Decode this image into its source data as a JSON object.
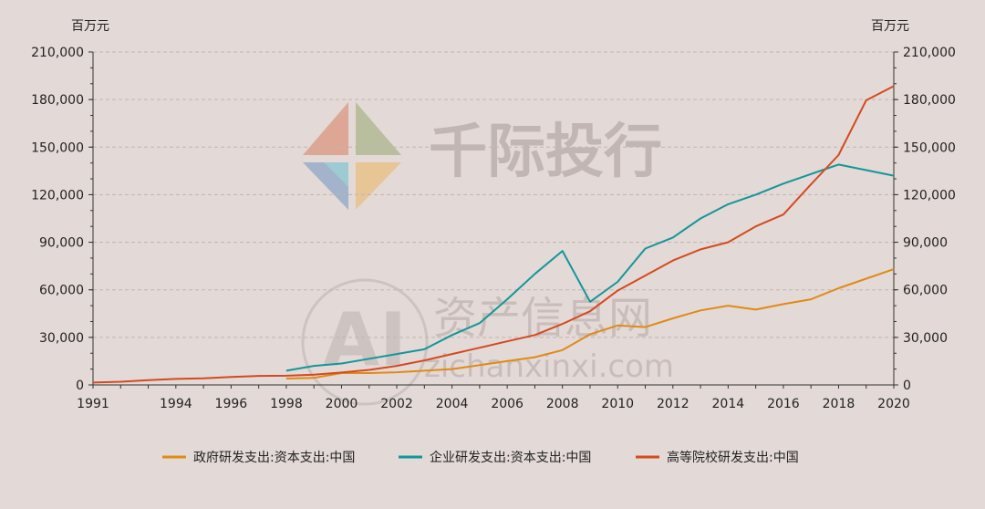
{
  "watermark": {
    "brand": "千际投行",
    "site_cn": "资产信息网",
    "site_url": "zichanxinxi.com",
    "badge": "AI"
  },
  "colors": {
    "gov": "#e08a16",
    "enterprise": "#13969a",
    "university": "#d44a1f",
    "grid": "#bfb5b3",
    "axis": "#333333"
  },
  "chart_data": {
    "type": "line",
    "title": "",
    "y_unit_left": "百万元",
    "y_unit_right": "百万元",
    "ylim": [
      0,
      210000
    ],
    "yticks": [
      0,
      30000,
      60000,
      90000,
      120000,
      150000,
      180000,
      210000
    ],
    "ytick_labels": [
      "0",
      "30,000",
      "60,000",
      "90,000",
      "120,000",
      "150,000",
      "180,000",
      "210,000"
    ],
    "xlim": [
      1991,
      2020
    ],
    "xticks": [
      1991,
      1994,
      1996,
      1998,
      2000,
      2002,
      2004,
      2006,
      2008,
      2010,
      2012,
      2014,
      2016,
      2018,
      2020
    ],
    "grid": true,
    "legend_position": "bottom",
    "series": [
      {
        "name": "政府研发支出:资本支出:中国",
        "color_key": "gov",
        "x": [
          1998,
          1999,
          2000,
          2001,
          2002,
          2003,
          2004,
          2005,
          2006,
          2007,
          2008,
          2009,
          2010,
          2011,
          2012,
          2013,
          2014,
          2015,
          2016,
          2017,
          2018,
          2019,
          2020
        ],
        "y": [
          4000,
          4500,
          7500,
          7500,
          8000,
          9000,
          10000,
          12500,
          15000,
          17500,
          22000,
          32000,
          37500,
          36500,
          42000,
          47000,
          50000,
          47500,
          51000,
          54000,
          61000,
          67000,
          73000
        ]
      },
      {
        "name": "企业研发支出:资本支出:中国",
        "color_key": "enterprise",
        "x": [
          1998,
          1999,
          2000,
          2001,
          2002,
          2003,
          2004,
          2005,
          2006,
          2007,
          2008,
          2009,
          2010,
          2011,
          2012,
          2013,
          2014,
          2015,
          2016,
          2017,
          2018,
          2019,
          2020
        ],
        "y": [
          9000,
          12000,
          13500,
          16500,
          19500,
          22500,
          31500,
          39000,
          54000,
          70000,
          84500,
          52500,
          65000,
          86000,
          93000,
          105000,
          114000,
          120000,
          127000,
          133000,
          139000,
          135500,
          132000
        ]
      },
      {
        "name": "高等院校研发支出:中国",
        "color_key": "university",
        "x": [
          1991,
          1992,
          1993,
          1994,
          1995,
          1996,
          1997,
          1998,
          1999,
          2000,
          2001,
          2002,
          2003,
          2004,
          2005,
          2006,
          2007,
          2008,
          2009,
          2010,
          2011,
          2012,
          2013,
          2014,
          2015,
          2016,
          2017,
          2018,
          2019,
          2020
        ],
        "y": [
          1500,
          2000,
          3000,
          3800,
          4200,
          5000,
          5700,
          5800,
          6500,
          7800,
          9500,
          12000,
          15500,
          19500,
          23500,
          27500,
          31500,
          38500,
          46500,
          59500,
          69000,
          78500,
          85500,
          90000,
          100000,
          107500,
          126500,
          145000,
          179500,
          188500
        ]
      }
    ]
  }
}
